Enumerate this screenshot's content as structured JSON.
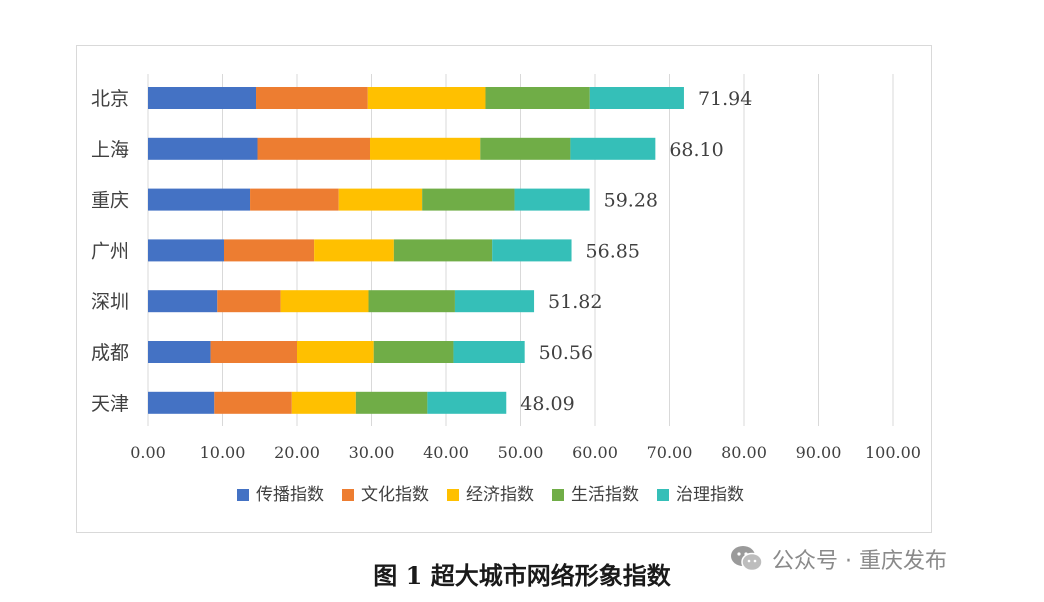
{
  "chart_data": {
    "type": "bar",
    "orientation": "horizontal",
    "stacked": true,
    "categories": [
      "北京",
      "上海",
      "重庆",
      "广州",
      "深圳",
      "成都",
      "天津"
    ],
    "series": [
      {
        "name": "传播指数",
        "color": "#4472C4",
        "values": [
          14.5,
          14.7,
          13.7,
          10.2,
          9.3,
          8.4,
          8.9
        ]
      },
      {
        "name": "文化指数",
        "color": "#ED7D31",
        "values": [
          15.0,
          15.1,
          11.9,
          12.1,
          8.5,
          11.6,
          10.4
        ]
      },
      {
        "name": "经济指数",
        "color": "#FFC000",
        "values": [
          15.8,
          14.8,
          11.2,
          10.7,
          11.8,
          10.3,
          8.6
        ]
      },
      {
        "name": "生活指数",
        "color": "#70AD47",
        "values": [
          14.0,
          12.1,
          12.4,
          13.2,
          11.6,
          10.7,
          9.6
        ]
      },
      {
        "name": "治理指数",
        "color": "#35BFB8",
        "values": [
          12.64,
          11.4,
          10.08,
          10.65,
          10.62,
          9.56,
          10.59
        ]
      }
    ],
    "totals": [
      "71.94",
      "68.10",
      "59.28",
      "56.85",
      "51.82",
      "50.56",
      "48.09"
    ],
    "x_ticks": [
      "0.00",
      "10.00",
      "20.00",
      "30.00",
      "40.00",
      "50.00",
      "60.00",
      "70.00",
      "80.00",
      "90.00",
      "100.00"
    ],
    "xlim": [
      0,
      100
    ],
    "grid": "vertical",
    "legend_position": "bottom",
    "caption": "图 1 超大城市网络形象指数"
  },
  "watermark": {
    "icon": "wechat-icon",
    "text": "公众号 · 重庆发布"
  }
}
